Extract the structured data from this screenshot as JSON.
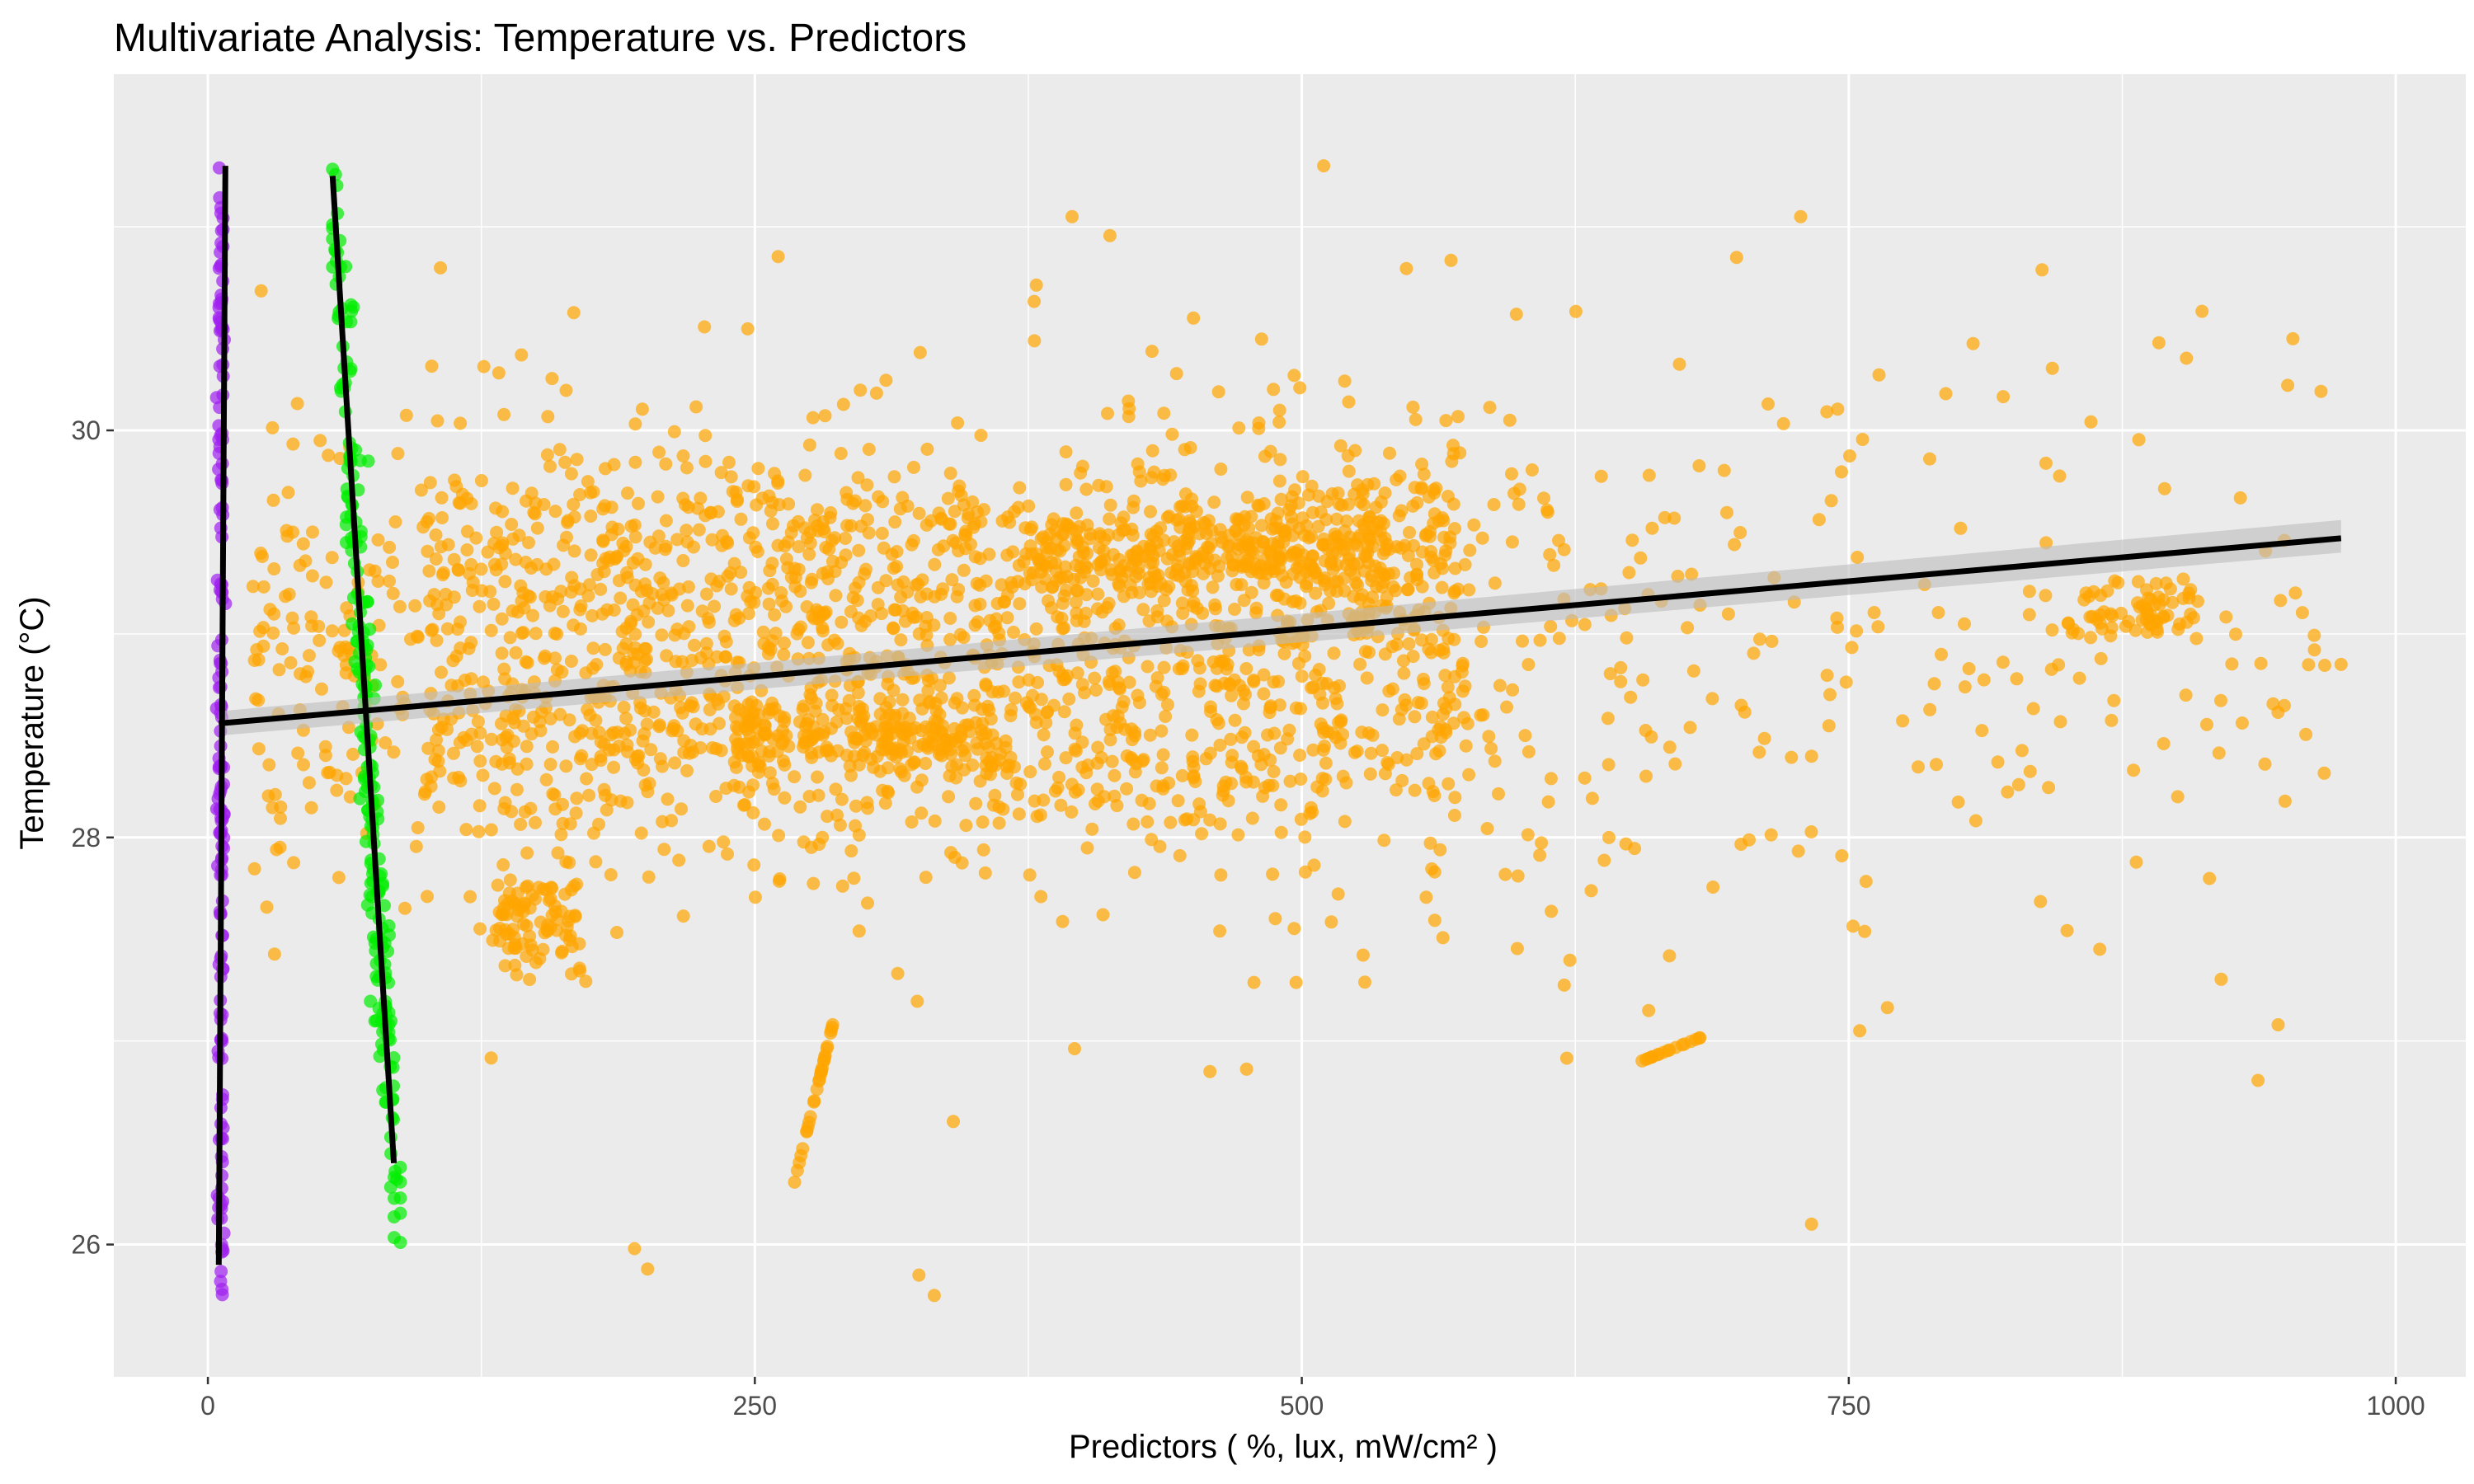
{
  "chart_data": {
    "type": "scatter",
    "title": "Multivariate Analysis: Temperature vs. Predictors",
    "xlabel": "Predictors ( %, lux, mW/cm² )",
    "ylabel": "Temperature (°C)",
    "xlim": [
      -43,
      1032
    ],
    "ylim": [
      25.35,
      31.75
    ],
    "x_ticks": [
      0,
      250,
      500,
      750,
      1000
    ],
    "x_tick_labels": [
      "0",
      "250",
      "500",
      "750",
      "1000"
    ],
    "y_ticks": [
      26,
      28,
      30
    ],
    "y_tick_labels": [
      "26",
      "28",
      "30"
    ],
    "grid": true,
    "legend": "none",
    "colors": {
      "panel_background": "#ebebeb",
      "grid": "#ffffff",
      "fit_line": "#000000",
      "confidence_band": "#bdbdbd"
    },
    "series": [
      {
        "color": "#a020f0",
        "x_range": [
          4,
          9
        ],
        "y_range": [
          25.75,
          31.3
        ],
        "count": 160,
        "distribution": "vertical band near x=6, spanning nearly the full temperature range",
        "fit": {
          "x": [
            5,
            8
          ],
          "y": [
            25.9,
            31.3
          ]
        }
      },
      {
        "color": "#00ee00",
        "x_range": [
          57,
          88
        ],
        "y_range": [
          25.75,
          31.3
        ],
        "count": 230,
        "distribution": "steep band from x≈60 at 31°C down to x≈85 at 26°C",
        "fit": {
          "x": [
            57,
            85
          ],
          "y": [
            31.25,
            26.4
          ]
        }
      },
      {
        "color": "#ffa500",
        "x_range": [
          5,
          975
        ],
        "y_range": [
          25.75,
          31.3
        ],
        "count": 2800,
        "distribution": "dense cloud between x≈100 and x≈560 at 27.5–29.9°C; sparse points to x≈975; small cluster near x≈850–910 at ~29.1°C",
        "fit": {
          "x": [
            5,
            975
          ],
          "y": [
            28.56,
            29.47
          ]
        },
        "confidence_band": {
          "x": [
            5,
            975
          ],
          "lower": [
            28.5,
            29.4
          ],
          "upper": [
            28.62,
            29.56
          ]
        }
      }
    ]
  }
}
